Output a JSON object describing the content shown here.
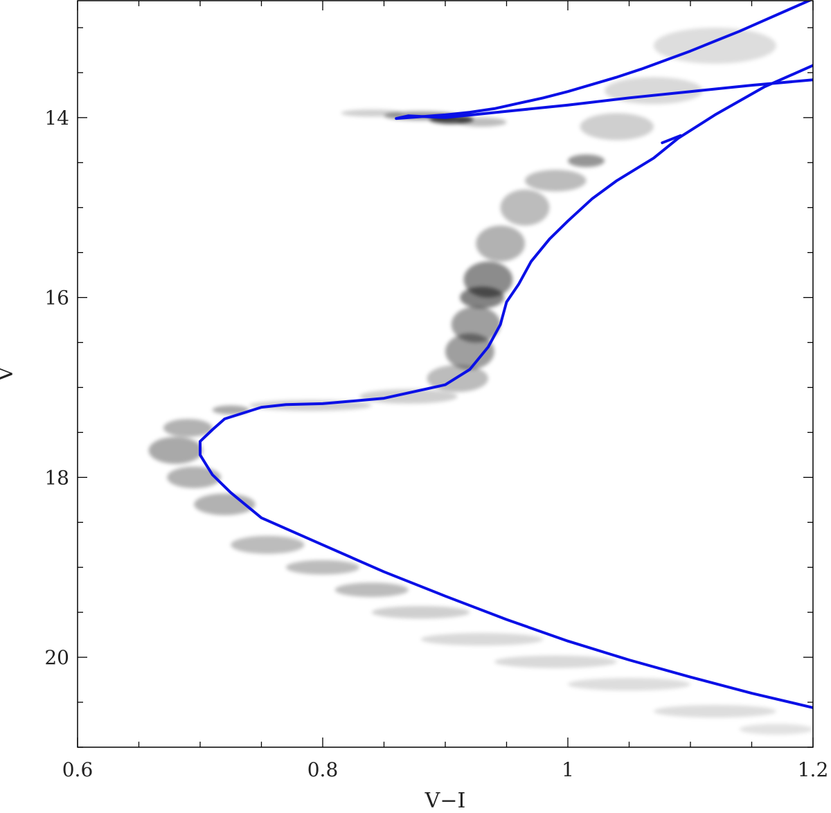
{
  "chart_data": {
    "type": "scatter",
    "title": "",
    "xlabel": "V−I",
    "ylabel": "V",
    "xlim": [
      0.6,
      1.2
    ],
    "ylim": [
      21.0,
      12.7
    ],
    "y_inverted": true,
    "x_major_ticks": [
      0.6,
      0.8,
      1.0,
      1.2
    ],
    "x_tick_labels": [
      "0.6",
      "0.8",
      "1",
      "1.2"
    ],
    "x_minor_step": 0.05,
    "y_major_ticks": [
      14,
      16,
      18,
      20
    ],
    "y_tick_labels": [
      "14",
      "16",
      "18",
      "20"
    ],
    "y_minor_step": 0.5,
    "grid": false,
    "colors": {
      "isochrone": "#0a10e6",
      "density": "#000000"
    },
    "density_blobs": [
      {
        "x": 0.905,
        "y": 14.02,
        "sx": 0.018,
        "sy": 0.05,
        "a": 0.95
      },
      {
        "x": 0.88,
        "y": 13.98,
        "sx": 0.03,
        "sy": 0.05,
        "a": 0.5
      },
      {
        "x": 0.84,
        "y": 13.95,
        "sx": 0.025,
        "sy": 0.04,
        "a": 0.25
      },
      {
        "x": 0.93,
        "y": 14.05,
        "sx": 0.02,
        "sy": 0.05,
        "a": 0.35
      },
      {
        "x": 1.015,
        "y": 14.48,
        "sx": 0.015,
        "sy": 0.07,
        "a": 0.55
      },
      {
        "x": 0.99,
        "y": 14.7,
        "sx": 0.025,
        "sy": 0.12,
        "a": 0.35
      },
      {
        "x": 1.04,
        "y": 14.1,
        "sx": 0.03,
        "sy": 0.15,
        "a": 0.25
      },
      {
        "x": 1.07,
        "y": 13.7,
        "sx": 0.04,
        "sy": 0.15,
        "a": 0.2
      },
      {
        "x": 1.12,
        "y": 13.2,
        "sx": 0.05,
        "sy": 0.2,
        "a": 0.18
      },
      {
        "x": 0.965,
        "y": 15.0,
        "sx": 0.02,
        "sy": 0.2,
        "a": 0.35
      },
      {
        "x": 0.945,
        "y": 15.4,
        "sx": 0.02,
        "sy": 0.2,
        "a": 0.4
      },
      {
        "x": 0.935,
        "y": 15.8,
        "sx": 0.02,
        "sy": 0.2,
        "a": 0.6
      },
      {
        "x": 0.93,
        "y": 16.0,
        "sx": 0.018,
        "sy": 0.12,
        "a": 0.65
      },
      {
        "x": 0.925,
        "y": 16.3,
        "sx": 0.02,
        "sy": 0.2,
        "a": 0.5
      },
      {
        "x": 0.92,
        "y": 16.6,
        "sx": 0.02,
        "sy": 0.2,
        "a": 0.5
      },
      {
        "x": 0.91,
        "y": 16.9,
        "sx": 0.025,
        "sy": 0.15,
        "a": 0.35
      },
      {
        "x": 0.87,
        "y": 17.1,
        "sx": 0.04,
        "sy": 0.08,
        "a": 0.25
      },
      {
        "x": 0.79,
        "y": 17.2,
        "sx": 0.05,
        "sy": 0.06,
        "a": 0.25
      },
      {
        "x": 0.725,
        "y": 17.25,
        "sx": 0.015,
        "sy": 0.05,
        "a": 0.45
      },
      {
        "x": 0.69,
        "y": 17.45,
        "sx": 0.02,
        "sy": 0.1,
        "a": 0.4
      },
      {
        "x": 0.68,
        "y": 17.7,
        "sx": 0.022,
        "sy": 0.15,
        "a": 0.45
      },
      {
        "x": 0.695,
        "y": 18.0,
        "sx": 0.022,
        "sy": 0.12,
        "a": 0.4
      },
      {
        "x": 0.72,
        "y": 18.3,
        "sx": 0.025,
        "sy": 0.12,
        "a": 0.4
      },
      {
        "x": 0.755,
        "y": 18.75,
        "sx": 0.03,
        "sy": 0.1,
        "a": 0.35
      },
      {
        "x": 0.8,
        "y": 19.0,
        "sx": 0.03,
        "sy": 0.08,
        "a": 0.35
      },
      {
        "x": 0.84,
        "y": 19.25,
        "sx": 0.03,
        "sy": 0.08,
        "a": 0.35
      },
      {
        "x": 0.88,
        "y": 19.5,
        "sx": 0.04,
        "sy": 0.07,
        "a": 0.25
      },
      {
        "x": 0.93,
        "y": 19.8,
        "sx": 0.05,
        "sy": 0.07,
        "a": 0.2
      },
      {
        "x": 0.99,
        "y": 20.05,
        "sx": 0.05,
        "sy": 0.07,
        "a": 0.2
      },
      {
        "x": 1.05,
        "y": 20.3,
        "sx": 0.05,
        "sy": 0.07,
        "a": 0.18
      },
      {
        "x": 1.12,
        "y": 20.6,
        "sx": 0.05,
        "sy": 0.07,
        "a": 0.18
      },
      {
        "x": 1.17,
        "y": 20.8,
        "sx": 0.03,
        "sy": 0.06,
        "a": 0.15
      }
    ],
    "series": [
      {
        "type": "line",
        "x": [
          1.2,
          1.18,
          1.16,
          1.14,
          1.12,
          1.1,
          1.08,
          1.06,
          1.04,
          1.02,
          1.0,
          0.98,
          0.96,
          0.94,
          0.92,
          0.9,
          0.88,
          0.86,
          0.87,
          0.9,
          0.95,
          1.0,
          1.05,
          1.1,
          1.15,
          1.2
        ],
        "y": [
          12.68,
          12.8,
          12.92,
          13.04,
          13.15,
          13.26,
          13.36,
          13.46,
          13.55,
          13.63,
          13.71,
          13.78,
          13.84,
          13.9,
          13.94,
          13.97,
          13.99,
          14.01,
          13.98,
          14.0,
          13.93,
          13.86,
          13.78,
          13.71,
          13.64,
          13.58
        ]
      },
      {
        "type": "line",
        "x": [
          1.2,
          1.16,
          1.12,
          1.09,
          1.07,
          1.04,
          1.02,
          1.0,
          0.985,
          0.97,
          0.96,
          0.95,
          0.945,
          0.935,
          0.92,
          0.9,
          0.85,
          0.8,
          0.77,
          0.75,
          0.72,
          0.71,
          0.7,
          0.7,
          0.71,
          0.725,
          0.75,
          0.8,
          0.85,
          0.9,
          0.95,
          1.0,
          1.05,
          1.1,
          1.15,
          1.2
        ],
        "y": [
          13.42,
          13.66,
          13.97,
          14.23,
          14.45,
          14.7,
          14.9,
          15.15,
          15.35,
          15.6,
          15.85,
          16.05,
          16.3,
          16.55,
          16.8,
          16.97,
          17.12,
          17.18,
          17.19,
          17.22,
          17.35,
          17.47,
          17.6,
          17.75,
          17.97,
          18.17,
          18.45,
          18.75,
          19.05,
          19.32,
          19.58,
          19.82,
          20.03,
          20.22,
          20.4,
          20.56
        ]
      },
      {
        "type": "line",
        "x": [
          1.077,
          1.092
        ],
        "y": [
          14.28,
          14.2
        ]
      }
    ]
  }
}
